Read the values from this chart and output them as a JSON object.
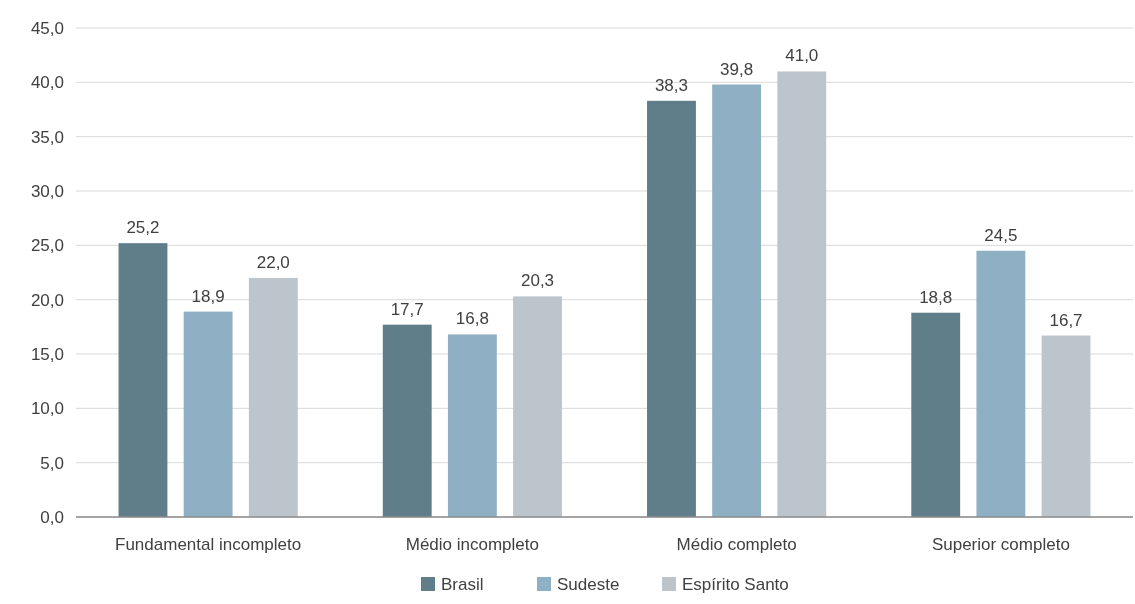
{
  "chart_data": {
    "type": "bar",
    "categories": [
      "Fundamental incompleto",
      "Médio incompleto",
      "Médio completo",
      "Superior completo"
    ],
    "series": [
      {
        "name": "Brasil",
        "color": "#607d8a",
        "values": [
          25.2,
          17.7,
          38.3,
          18.8
        ],
        "value_labels": [
          "25,2",
          "17,7",
          "38,3",
          "18,8"
        ]
      },
      {
        "name": "Sudeste",
        "color": "#8fafc4",
        "values": [
          18.9,
          16.8,
          39.8,
          24.5
        ],
        "value_labels": [
          "18,9",
          "16,8",
          "39,8",
          "24,5"
        ]
      },
      {
        "name": "Espírito Santo",
        "color": "#bcc4cc",
        "values": [
          22.0,
          20.3,
          41.0,
          16.7
        ],
        "value_labels": [
          "22,0",
          "20,3",
          "41,0",
          "16,7"
        ]
      }
    ],
    "ylim": [
      0,
      45
    ],
    "yticks": [
      {
        "value": 0,
        "label": "0,0"
      },
      {
        "value": 5,
        "label": "5,0"
      },
      {
        "value": 10,
        "label": "10,0"
      },
      {
        "value": 15,
        "label": "15,0"
      },
      {
        "value": 20,
        "label": "20,0"
      },
      {
        "value": 25,
        "label": "25,0"
      },
      {
        "value": 30,
        "label": "30,0"
      },
      {
        "value": 35,
        "label": "35,0"
      },
      {
        "value": 40,
        "label": "40,0"
      },
      {
        "value": 45,
        "label": "45,0"
      }
    ],
    "grid": "y",
    "legend": "bottom"
  }
}
